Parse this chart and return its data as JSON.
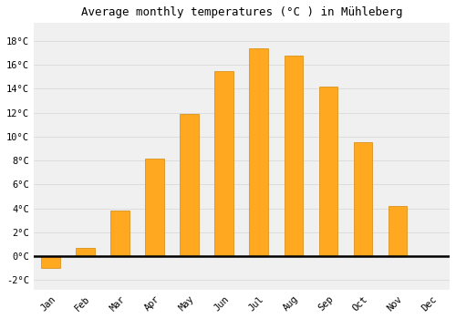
{
  "title": "Average monthly temperatures (°C ) in Mühleberg",
  "months": [
    "Jan",
    "Feb",
    "Mar",
    "Apr",
    "May",
    "Jun",
    "Jul",
    "Aug",
    "Sep",
    "Oct",
    "Nov",
    "Dec"
  ],
  "values": [
    -1.0,
    0.7,
    3.8,
    8.2,
    11.9,
    15.5,
    17.4,
    16.8,
    14.2,
    9.5,
    4.2,
    0.0
  ],
  "bar_color": "#FFA820",
  "bar_edge_color": "#D4880A",
  "background_color": "#FFFFFF",
  "plot_bg_color": "#F0F0F0",
  "grid_color": "#DDDDDD",
  "ytick_labels": [
    "-2°C",
    "0°C",
    "2°C",
    "4°C",
    "6°C",
    "8°C",
    "10°C",
    "12°C",
    "14°C",
    "16°C",
    "18°C"
  ],
  "ytick_values": [
    -2,
    0,
    2,
    4,
    6,
    8,
    10,
    12,
    14,
    16,
    18
  ],
  "ylim": [
    -2.8,
    19.5
  ],
  "xlim": [
    -0.5,
    11.5
  ],
  "title_fontsize": 9,
  "tick_fontsize": 7.5,
  "xlabel_rotation": 45,
  "bar_width": 0.55
}
